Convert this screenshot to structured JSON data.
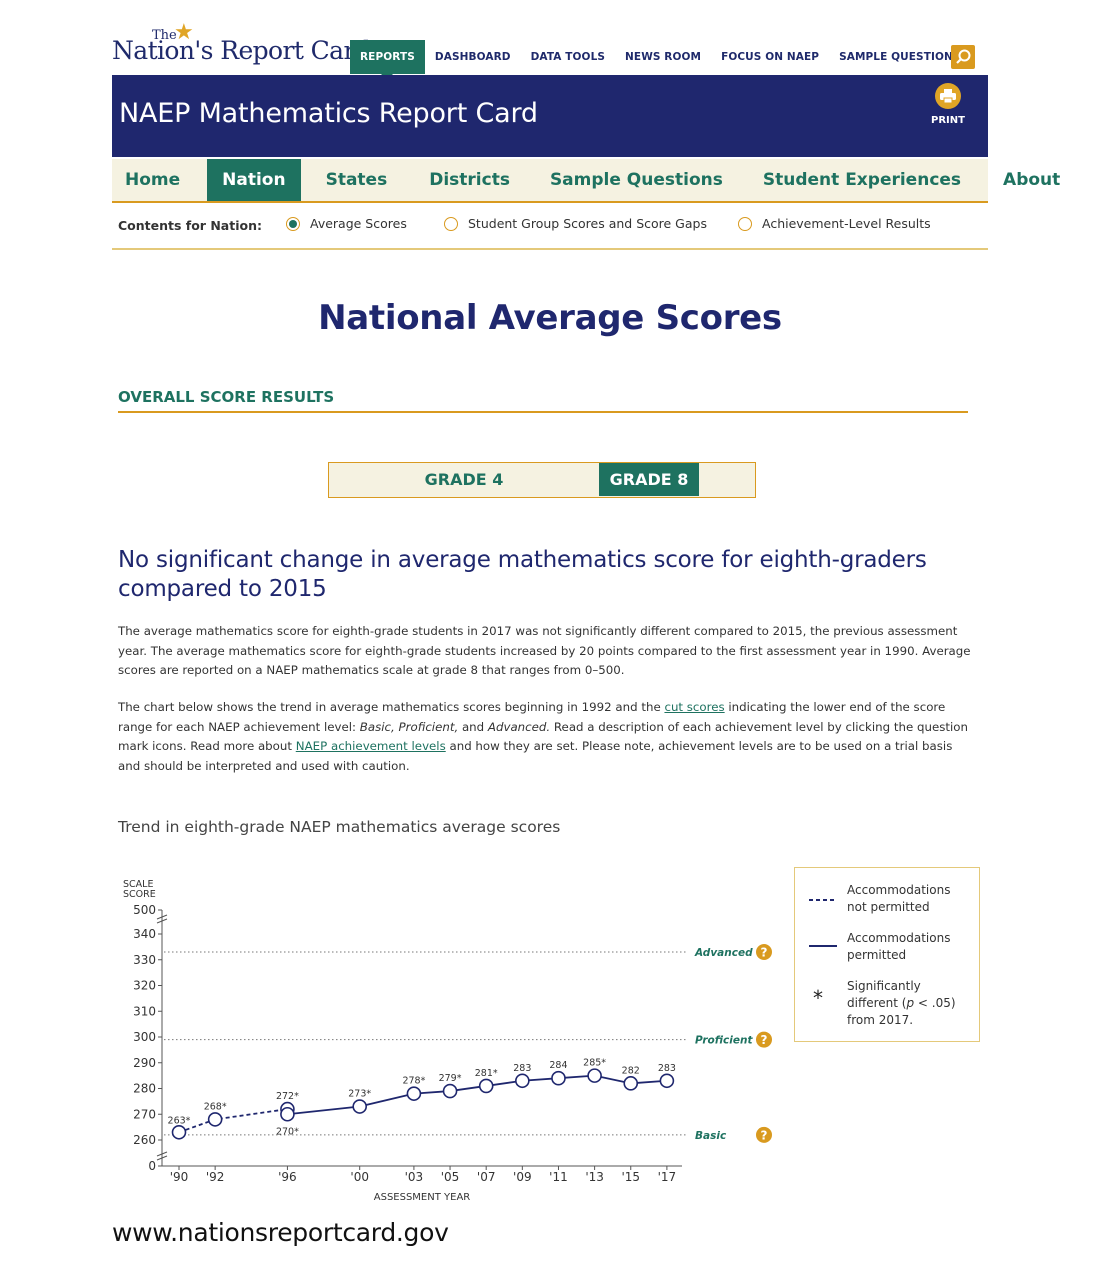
{
  "logo": {
    "the": "The",
    "main": "Nation's Report Card"
  },
  "topnav": [
    "REPORTS",
    "DASHBOARD",
    "DATA TOOLS",
    "NEWS ROOM",
    "FOCUS ON NAEP",
    "SAMPLE QUESTIONS"
  ],
  "topnav_active": "REPORTS",
  "banner": {
    "title": "NAEP Mathematics Report Card",
    "print_label": "PRINT"
  },
  "section_tabs": [
    "Home",
    "Nation",
    "States",
    "Districts",
    "Sample Questions",
    "Student Experiences",
    "About"
  ],
  "section_active": "Nation",
  "contents": {
    "label": "Contents for Nation:",
    "options": [
      {
        "label": "Average Scores",
        "selected": true
      },
      {
        "label": "Student Group Scores and Score Gaps",
        "selected": false
      },
      {
        "label": "Achievement-Level Results",
        "selected": false
      }
    ]
  },
  "page_title": "National Average Scores",
  "overall_heading": "OVERALL SCORE RESULTS",
  "grades": {
    "grade4": "GRADE 4",
    "grade8": "GRADE 8",
    "active": "GRADE 8"
  },
  "headline": "No significant change in average mathematics score for eighth-graders compared to 2015",
  "para1": "The average mathematics score for eighth-grade students in 2017 was not significantly different compared to 2015, the previous assessment year. The average mathematics score for eighth-grade students increased by 20 points compared to the first assessment year in 1990. Average scores are reported on a NAEP mathematics scale at grade 8 that ranges from 0–500.",
  "para2": {
    "t1": "The chart below shows the trend in average mathematics scores beginning in 1992 and the ",
    "link1": "cut scores",
    "t2": " indicating the lower end of the score range for each NAEP achievement level: ",
    "basic": "Basic,",
    "sp1": " ",
    "proficient": "Proficient,",
    "t3": " and ",
    "advanced": "Advanced.",
    "t4": " Read a description of each achievement level by clicking the question mark icons. Read more about ",
    "link2": "NAEP achievement levels",
    "t5": " and how they are set. Please note, achievement levels are to be used on a trial basis and should be interpreted and used with caution."
  },
  "chart_title": "Trend in eighth-grade NAEP mathematics average scores",
  "legend": {
    "dashed": "Accommodations not permitted",
    "solid": "Accommodations permitted",
    "star_symbol": "*",
    "star_text_1": "Significantly different (",
    "star_p": "p",
    "star_text_2": " < .05) from 2017."
  },
  "footer_url": "www.nationsreportcard.gov",
  "colors": {
    "navy": "#1f276e",
    "teal": "#1e7260",
    "gold": "#d99a1f",
    "cream": "#f5f2e1"
  },
  "chart_data": {
    "type": "line",
    "ylabel": "SCALE SCORE",
    "xlabel": "ASSESSMENT YEAR",
    "y_ticks": [
      0,
      260,
      270,
      280,
      290,
      300,
      310,
      320,
      330,
      340,
      500
    ],
    "y_broken_axis": true,
    "x_ticks": [
      "'90",
      "'92",
      "'96",
      "'00",
      "'03",
      "'05",
      "'07",
      "'09",
      "'11",
      "'13",
      "'15",
      "'17"
    ],
    "series": [
      {
        "name": "Accommodations not permitted",
        "style": "dashed",
        "points": [
          {
            "x": 1990,
            "y": 263,
            "label": "263*"
          },
          {
            "x": 1992,
            "y": 268,
            "label": "268*"
          },
          {
            "x": 1996,
            "y": 272,
            "label": "272*"
          }
        ]
      },
      {
        "name": "Accommodations permitted",
        "style": "solid",
        "points": [
          {
            "x": 1996,
            "y": 270,
            "label": "270*"
          },
          {
            "x": 2000,
            "y": 273,
            "label": "273*"
          },
          {
            "x": 2003,
            "y": 278,
            "label": "278*"
          },
          {
            "x": 2005,
            "y": 279,
            "label": "279*"
          },
          {
            "x": 2007,
            "y": 281,
            "label": "281*"
          },
          {
            "x": 2009,
            "y": 283,
            "label": "283"
          },
          {
            "x": 2011,
            "y": 284,
            "label": "284"
          },
          {
            "x": 2013,
            "y": 285,
            "label": "285*"
          },
          {
            "x": 2015,
            "y": 282,
            "label": "282"
          },
          {
            "x": 2017,
            "y": 283,
            "label": "283"
          }
        ]
      }
    ],
    "reference_lines": [
      {
        "name": "Advanced",
        "y": 333
      },
      {
        "name": "Proficient",
        "y": 299
      },
      {
        "name": "Basic",
        "y": 262
      }
    ],
    "legend_position": "right"
  }
}
